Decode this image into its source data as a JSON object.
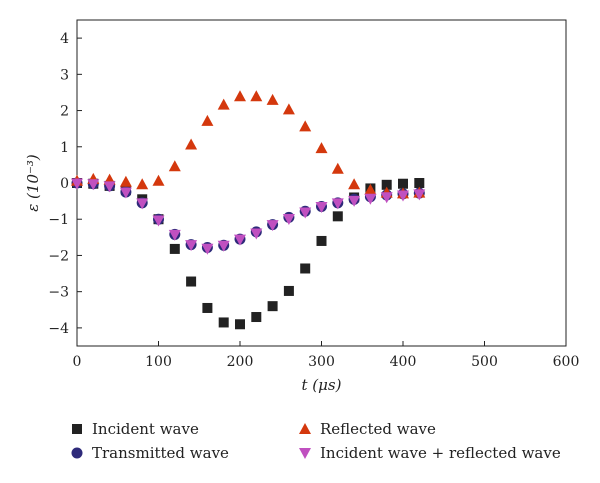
{
  "chart_data": {
    "type": "scatter",
    "xlabel": "t (μs)",
    "ylabel": "ε (10⁻³)",
    "xlim": [
      0,
      600
    ],
    "ylim": [
      -4.5,
      4.5
    ],
    "xticks": [
      0,
      100,
      200,
      300,
      400,
      500,
      600
    ],
    "yticks": [
      -4,
      -3,
      -2,
      -1,
      0,
      1,
      2,
      3,
      4
    ],
    "grid": false,
    "legend_position": "bottom",
    "series": [
      {
        "name": "Incident wave",
        "marker": "square",
        "color": "#222222",
        "x": [
          0,
          20,
          40,
          60,
          80,
          100,
          120,
          140,
          160,
          180,
          200,
          220,
          240,
          260,
          280,
          300,
          320,
          340,
          360,
          380,
          400,
          420
        ],
        "y": [
          0,
          -0.02,
          -0.08,
          -0.2,
          -0.45,
          -1.0,
          -1.82,
          -2.72,
          -3.45,
          -3.85,
          -3.9,
          -3.7,
          -3.4,
          -2.98,
          -2.36,
          -1.6,
          -0.92,
          -0.4,
          -0.15,
          -0.05,
          -0.02,
          0
        ]
      },
      {
        "name": "Transmitted wave",
        "marker": "circle",
        "color": "#2e2a7a",
        "x": [
          0,
          20,
          40,
          60,
          80,
          100,
          120,
          140,
          160,
          180,
          200,
          220,
          240,
          260,
          280,
          300,
          320,
          340,
          360,
          380,
          400,
          420
        ],
        "y": [
          0,
          -0.02,
          -0.08,
          -0.25,
          -0.55,
          -1.0,
          -1.42,
          -1.7,
          -1.78,
          -1.72,
          -1.55,
          -1.35,
          -1.15,
          -0.95,
          -0.78,
          -0.65,
          -0.55,
          -0.45,
          -0.38,
          -0.33,
          -0.3,
          -0.28
        ]
      },
      {
        "name": "Reflected wave",
        "marker": "triangle-up",
        "color": "#d4380d",
        "x": [
          0,
          20,
          40,
          60,
          80,
          100,
          120,
          140,
          160,
          180,
          200,
          220,
          240,
          260,
          280,
          300,
          320,
          340,
          360,
          380,
          400,
          420
        ],
        "y": [
          0.05,
          0.1,
          0.08,
          0.02,
          -0.05,
          0.05,
          0.45,
          1.05,
          1.7,
          2.15,
          2.38,
          2.38,
          2.28,
          2.02,
          1.55,
          0.95,
          0.38,
          -0.05,
          -0.2,
          -0.28,
          -0.3,
          -0.28
        ]
      },
      {
        "name": "Incident wave + reflected wave",
        "marker": "triangle-down",
        "color": "#c050c0",
        "x": [
          0,
          20,
          40,
          60,
          80,
          100,
          120,
          140,
          160,
          180,
          200,
          220,
          240,
          260,
          280,
          300,
          320,
          340,
          360,
          380,
          400,
          420
        ],
        "y": [
          0,
          -0.02,
          -0.08,
          -0.25,
          -0.55,
          -1.02,
          -1.42,
          -1.7,
          -1.8,
          -1.72,
          -1.55,
          -1.38,
          -1.15,
          -0.98,
          -0.8,
          -0.65,
          -0.55,
          -0.48,
          -0.42,
          -0.38,
          -0.33,
          -0.3
        ]
      }
    ]
  }
}
